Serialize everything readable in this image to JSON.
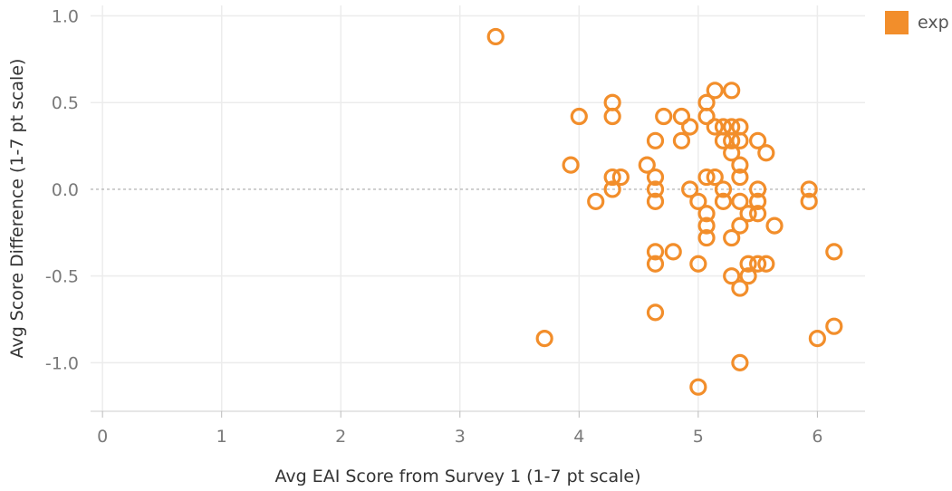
{
  "chart_data": {
    "type": "scatter",
    "title": "",
    "xlabel": "Avg EAI Score from Survey 1 (1-7 pt scale)",
    "ylabel": "Avg Score Difference (1-7 pt scale)",
    "xlim": [
      -0.1,
      6.4
    ],
    "ylim": [
      -1.28,
      1.06
    ],
    "x_ticks": [
      "0",
      "1",
      "2",
      "3",
      "4",
      "5",
      "6"
    ],
    "y_ticks": [
      "1.0",
      "0.5",
      "0.0",
      "-0.5",
      "-1.0"
    ],
    "grid": true,
    "zero_line": true,
    "marker": "hollow-circle",
    "legend_position": "top-right",
    "series": [
      {
        "name": "exp",
        "color": "#f28e2b",
        "points": [
          [
            3.3,
            0.88
          ],
          [
            4.0,
            0.42
          ],
          [
            4.28,
            0.5
          ],
          [
            4.28,
            0.42
          ],
          [
            3.93,
            0.14
          ],
          [
            4.28,
            0.07
          ],
          [
            4.35,
            0.07
          ],
          [
            4.28,
            0.0
          ],
          [
            4.14,
            -0.07
          ],
          [
            3.71,
            -0.86
          ],
          [
            4.57,
            0.14
          ],
          [
            4.64,
            0.28
          ],
          [
            4.64,
            0.07
          ],
          [
            4.64,
            0.0
          ],
          [
            4.64,
            -0.07
          ],
          [
            4.64,
            -0.36
          ],
          [
            4.64,
            -0.43
          ],
          [
            4.64,
            -0.71
          ],
          [
            4.71,
            0.42
          ],
          [
            4.79,
            -0.36
          ],
          [
            4.86,
            0.42
          ],
          [
            4.86,
            0.28
          ],
          [
            4.93,
            0.36
          ],
          [
            4.93,
            0.0
          ],
          [
            5.0,
            -0.07
          ],
          [
            5.0,
            -0.43
          ],
          [
            5.0,
            -1.14
          ],
          [
            5.07,
            0.5
          ],
          [
            5.07,
            0.42
          ],
          [
            5.07,
            0.07
          ],
          [
            5.07,
            -0.14
          ],
          [
            5.07,
            -0.21
          ],
          [
            5.07,
            -0.28
          ],
          [
            5.14,
            0.57
          ],
          [
            5.14,
            0.36
          ],
          [
            5.14,
            0.07
          ],
          [
            5.21,
            0.36
          ],
          [
            5.21,
            0.28
          ],
          [
            5.21,
            0.0
          ],
          [
            5.21,
            -0.07
          ],
          [
            5.28,
            0.57
          ],
          [
            5.28,
            0.36
          ],
          [
            5.28,
            0.28
          ],
          [
            5.28,
            0.21
          ],
          [
            5.28,
            -0.28
          ],
          [
            5.28,
            -0.5
          ],
          [
            5.35,
            0.36
          ],
          [
            5.35,
            0.28
          ],
          [
            5.35,
            0.14
          ],
          [
            5.35,
            0.07
          ],
          [
            5.35,
            -0.07
          ],
          [
            5.35,
            -0.21
          ],
          [
            5.35,
            -0.57
          ],
          [
            5.35,
            -1.0
          ],
          [
            5.42,
            -0.14
          ],
          [
            5.42,
            -0.43
          ],
          [
            5.42,
            -0.5
          ],
          [
            5.5,
            0.28
          ],
          [
            5.5,
            0.0
          ],
          [
            5.5,
            -0.07
          ],
          [
            5.5,
            -0.14
          ],
          [
            5.5,
            -0.43
          ],
          [
            5.57,
            0.21
          ],
          [
            5.57,
            -0.43
          ],
          [
            5.64,
            -0.21
          ],
          [
            5.93,
            0.0
          ],
          [
            5.93,
            -0.07
          ],
          [
            6.0,
            -0.86
          ],
          [
            6.14,
            -0.36
          ],
          [
            6.14,
            -0.79
          ]
        ]
      }
    ]
  }
}
